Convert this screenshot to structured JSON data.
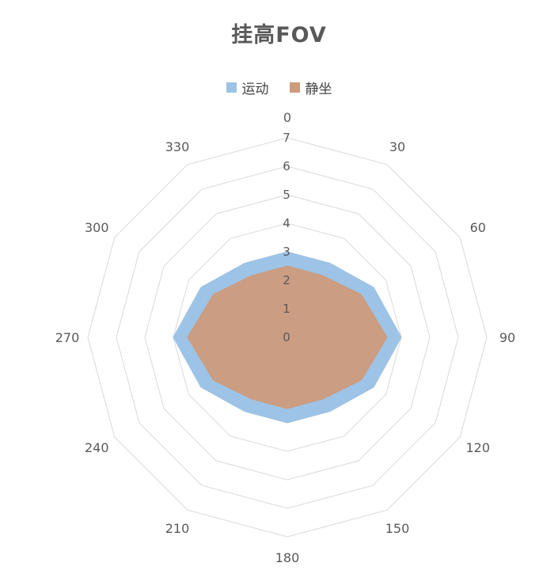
{
  "title": "挂高FOV",
  "chart_data": {
    "type": "radar",
    "title": "挂高FOV",
    "categories": [
      "0",
      "30",
      "60",
      "90",
      "120",
      "150",
      "180",
      "210",
      "240",
      "270",
      "300",
      "330"
    ],
    "series": [
      {
        "name": "运动",
        "color": "#9DC3E6",
        "values": [
          3,
          3,
          3.5,
          4,
          3.5,
          3,
          3,
          3,
          3.5,
          4,
          3.5,
          3
        ]
      },
      {
        "name": "静坐",
        "color": "#CE9B7C",
        "values": [
          2.5,
          2.5,
          3,
          3.5,
          3,
          2.5,
          2.5,
          2.5,
          3,
          3.5,
          3,
          2.5
        ]
      }
    ],
    "radial_ticks": [
      0,
      1,
      2,
      3,
      4,
      5,
      6,
      7
    ],
    "rlim": [
      0,
      7
    ],
    "grid": true,
    "grid_color": "#D9D9D9",
    "label_color": "#595959",
    "legend_position": "top"
  }
}
